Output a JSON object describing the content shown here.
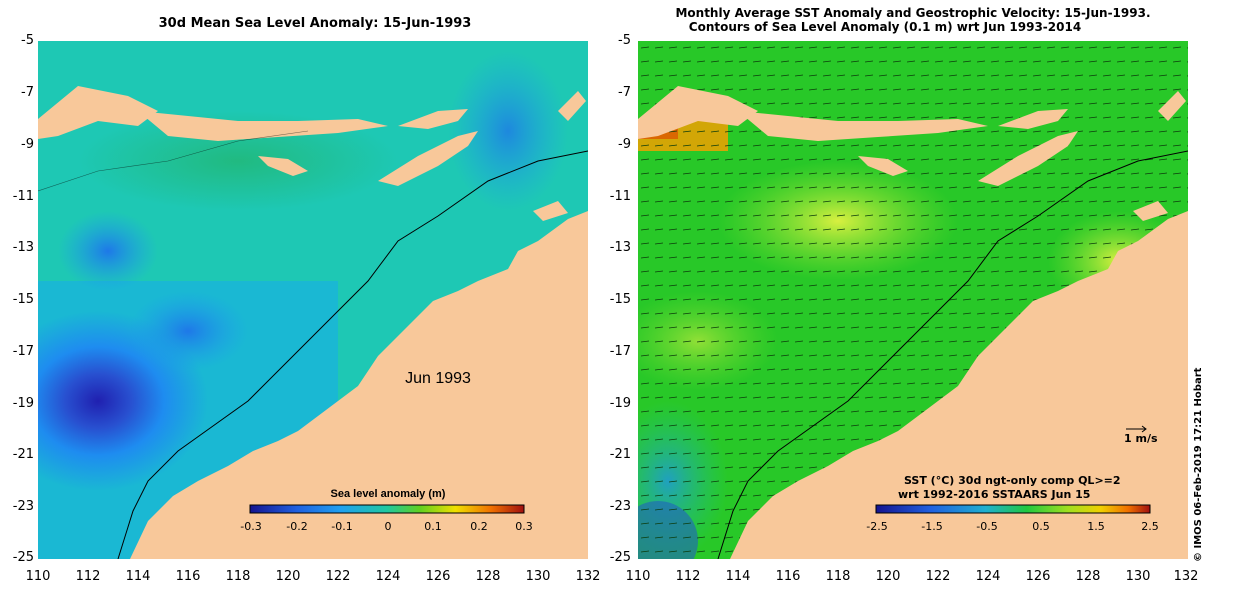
{
  "left_panel": {
    "title": "30d Mean Sea Level Anomaly: 15-Jun-1993",
    "map_label": "Jun 1993",
    "colorbar_title": "Sea level anomaly (m)",
    "colorbar_ticks": [
      "-0.3",
      "-0.2",
      "-0.1",
      "0",
      "0.1",
      "0.2",
      "0.3"
    ]
  },
  "right_panel": {
    "title_line1": "Monthly Average SST Anomaly  and Geostrophic Velocity: 15-Jun-1993.",
    "title_line2": "Contours of Sea Level Anomaly (0.1 m) wrt Jun 1993-2014",
    "velocity_scale_label": "1 m/s",
    "sst_caption_line1": "SST (°C) 30d ngt-only comp QL>=2",
    "sst_caption_line2": "wrt 1992-2016 SSTAARS Jun 15",
    "colorbar_ticks": [
      "-2.5",
      "-1.5",
      "-0.5",
      "0.5",
      "1.5",
      "2.5"
    ]
  },
  "axes": {
    "y_ticks": [
      "-5",
      "-7",
      "-9",
      "-11",
      "-13",
      "-15",
      "-17",
      "-19",
      "-21",
      "-23",
      "-25"
    ],
    "x_ticks": [
      "110",
      "112",
      "114",
      "116",
      "118",
      "120",
      "122",
      "124",
      "126",
      "128",
      "130",
      "132"
    ]
  },
  "credit": "© IMOS 06-Feb-2019 17:21 Hobart",
  "colors": {
    "land": "#f8c89a",
    "sla_ocean": "#1ec8b4",
    "sst_ocean": "#28c828"
  }
}
